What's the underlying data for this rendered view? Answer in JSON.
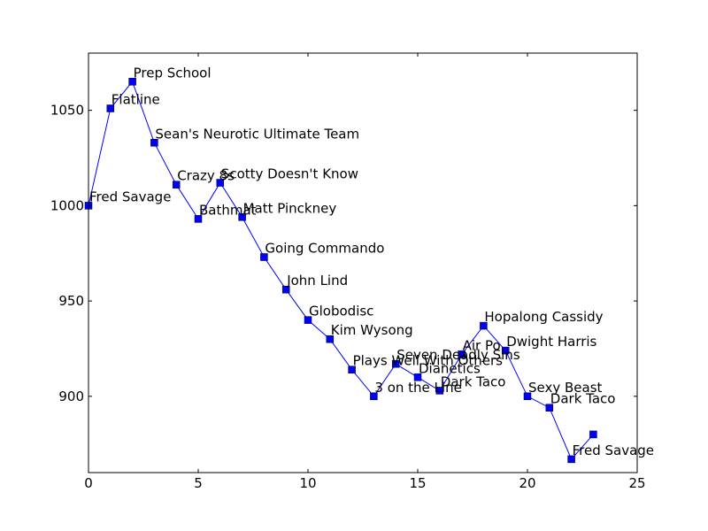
{
  "chart_data": {
    "type": "line",
    "title": "",
    "xlabel": "",
    "ylabel": "",
    "xlim": [
      0,
      25
    ],
    "ylim": [
      860,
      1080
    ],
    "x_ticks": [
      0,
      5,
      10,
      15,
      20,
      25
    ],
    "y_ticks": [
      900,
      950,
      1000,
      1050
    ],
    "x_tick_labels": [
      "0",
      "5",
      "10",
      "15",
      "20",
      "25"
    ],
    "y_tick_labels": [
      "900",
      "950",
      "1000",
      "1050"
    ],
    "grid": false,
    "legend": "none",
    "series": [
      {
        "color": "#0000ff",
        "marker": "square",
        "points": [
          {
            "x": 0,
            "y": 1000,
            "label": "Fred Savage"
          },
          {
            "x": 1,
            "y": 1051,
            "label": "Flatline"
          },
          {
            "x": 2,
            "y": 1065,
            "label": "Prep School"
          },
          {
            "x": 3,
            "y": 1033,
            "label": "Sean's Neurotic Ultimate Team"
          },
          {
            "x": 4,
            "y": 1011,
            "label": "Crazy 8s"
          },
          {
            "x": 5,
            "y": 993,
            "label": "Bathmat"
          },
          {
            "x": 6,
            "y": 1012,
            "label": "Scotty Doesn't Know"
          },
          {
            "x": 7,
            "y": 994,
            "label": "Matt Pinckney"
          },
          {
            "x": 8,
            "y": 973,
            "label": "Going Commando"
          },
          {
            "x": 9,
            "y": 956,
            "label": "John Lind"
          },
          {
            "x": 10,
            "y": 940,
            "label": "Globodisc"
          },
          {
            "x": 11,
            "y": 930,
            "label": "Kim Wysong"
          },
          {
            "x": 12,
            "y": 914,
            "label": "Plays Well With Others"
          },
          {
            "x": 13,
            "y": 900,
            "label": "3 on the Line"
          },
          {
            "x": 14,
            "y": 917,
            "label": "Seven Deadly Sins"
          },
          {
            "x": 15,
            "y": 910,
            "label": "Dianetics"
          },
          {
            "x": 16,
            "y": 903,
            "label": "Dark Taco"
          },
          {
            "x": 17,
            "y": 922,
            "label": "Air Po"
          },
          {
            "x": 18,
            "y": 937,
            "label": "Hopalong Cassidy"
          },
          {
            "x": 19,
            "y": 924,
            "label": "Dwight Harris"
          },
          {
            "x": 20,
            "y": 900,
            "label": "Sexy Beast"
          },
          {
            "x": 21,
            "y": 894,
            "label": "Dark Taco"
          },
          {
            "x": 22,
            "y": 867,
            "label": "Fred Savage"
          },
          {
            "x": 23,
            "y": 880,
            "label": ""
          }
        ]
      }
    ]
  }
}
